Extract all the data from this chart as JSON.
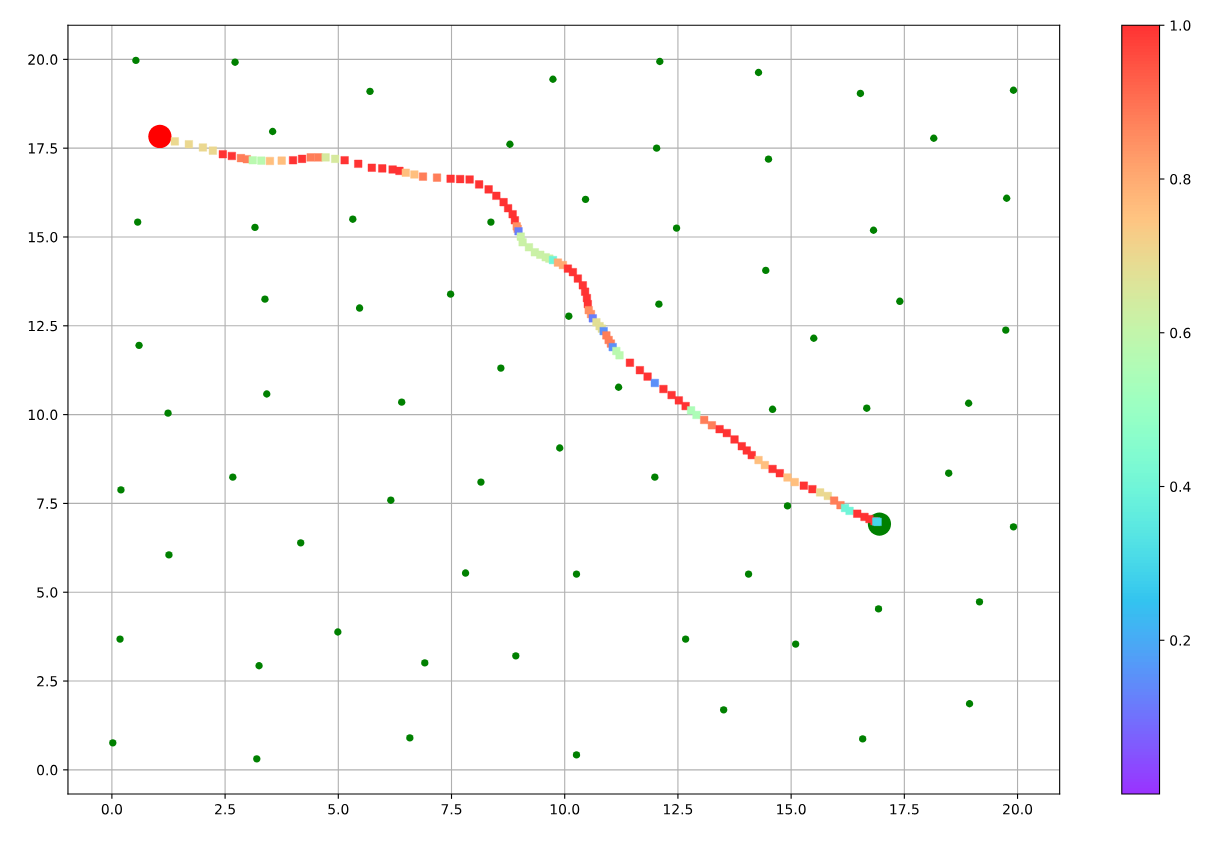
{
  "chart_data": {
    "type": "scatter",
    "xlim": [
      -0.97,
      20.93
    ],
    "ylim": [
      -0.68,
      20.96
    ],
    "xticks": [
      {
        "value": 0,
        "label": "0.0"
      },
      {
        "value": 2.5,
        "label": "2.5"
      },
      {
        "value": 5,
        "label": "5.0"
      },
      {
        "value": 7.5,
        "label": "7.5"
      },
      {
        "value": 10,
        "label": "10.0"
      },
      {
        "value": 12.5,
        "label": "12.5"
      },
      {
        "value": 15,
        "label": "15.0"
      },
      {
        "value": 17.5,
        "label": "17.5"
      },
      {
        "value": 20,
        "label": "20.0"
      }
    ],
    "yticks": [
      {
        "value": 0,
        "label": "0.0"
      },
      {
        "value": 2.5,
        "label": "2.5"
      },
      {
        "value": 5,
        "label": "5.0"
      },
      {
        "value": 7.5,
        "label": "7.5"
      },
      {
        "value": 10,
        "label": "10.0"
      },
      {
        "value": 12.5,
        "label": "12.5"
      },
      {
        "value": 15,
        "label": "15.0"
      },
      {
        "value": 17.5,
        "label": "17.5"
      },
      {
        "value": 20,
        "label": "20.0"
      }
    ],
    "grid": true,
    "clim": [
      0,
      1
    ],
    "cticks": [
      0.2,
      0.4,
      0.6,
      0.8,
      {
        "value": 1,
        "label": "1.0"
      }
    ],
    "series": [
      {
        "color": "#008000",
        "x": [
          0.53,
          2.72,
          5.7,
          9.74,
          12.1,
          14.28,
          16.53,
          19.91,
          3.55,
          8.79,
          12.03,
          14.5,
          18.15,
          0.57,
          3.16,
          5.32,
          8.37,
          10.46,
          12.47,
          16.82,
          19.76,
          3.38,
          5.47,
          7.48,
          10.09,
          12.08,
          14.44,
          17.4,
          19.74,
          0.6,
          1.24,
          3.42,
          6.4,
          8.59,
          11.19,
          14.59,
          15.5,
          16.67,
          18.92,
          0.2,
          2.67,
          6.16,
          8.15,
          9.89,
          11.99,
          14.92,
          18.48,
          19.91,
          1.26,
          4.17,
          7.81,
          10.26,
          14.06,
          16.93,
          19.16,
          0.18,
          3.25,
          4.99,
          6.91,
          8.92,
          12.67,
          15.1,
          13.51,
          18.94,
          0.02,
          3.2,
          6.58,
          10.26,
          16.58
        ],
        "values": [
          19.97,
          19.92,
          19.1,
          19.44,
          19.94,
          19.63,
          19.04,
          19.13,
          17.97,
          17.61,
          17.5,
          17.19,
          17.78,
          15.42,
          15.27,
          15.5,
          15.42,
          16.06,
          15.25,
          15.19,
          16.09,
          13.25,
          13.0,
          13.39,
          12.77,
          13.11,
          14.06,
          13.19,
          12.38,
          11.95,
          10.04,
          10.58,
          10.35,
          11.31,
          10.77,
          10.15,
          12.15,
          10.18,
          10.32,
          7.88,
          8.24,
          7.59,
          8.1,
          9.06,
          8.24,
          7.43,
          8.35,
          6.84,
          6.05,
          6.39,
          5.54,
          5.51,
          5.51,
          4.53,
          4.73,
          3.68,
          2.93,
          3.88,
          3.01,
          3.21,
          3.68,
          3.54,
          1.69,
          1.86,
          0.76,
          0.31,
          0.9,
          0.42,
          0.87
        ]
      },
      {
        "marker": "square",
        "colors": [
          "#ebd890",
          "#ebd890",
          "#ebd890",
          "#ebd890",
          "#ff3333",
          "#ff3333",
          "#ff7e59",
          "#ff7e59",
          "#baf9b0",
          "#baf9b0",
          "#ffbf7e",
          "#ffbf7e",
          "#ff3333",
          "#ff3333",
          "#ff7e59",
          "#ff7e59",
          "#d6e99e",
          "#d6e99e",
          "#ff3333",
          "#ff3333",
          "#ff3333",
          "#ff3333",
          "#ff3333",
          "#ff3333",
          "#ffbf7e",
          "#ffbf7e",
          "#ff7e59",
          "#ff7e59",
          "#ff3333",
          "#ff3333",
          "#ff3333",
          "#ff3333",
          "#ff3333",
          "#ff3333",
          "#ff3333",
          "#ff3333",
          "#ff3333",
          "#ff3333",
          "#ff9063",
          "#ff9063",
          "#687efb",
          "#caf1a6",
          "#caf1a6",
          "#caf1a6",
          "#caf1a6",
          "#caf1a6",
          "#caf1a6",
          "#caf1a6",
          "#70f5d8",
          "#ffab72",
          "#ffab72",
          "#ff3333",
          "#ff3333",
          "#ff3333",
          "#ff3333",
          "#ff3333",
          "#ff3333",
          "#ff3333",
          "#ff9063",
          "#ff9063",
          "#687efb",
          "#e2df95",
          "#e2df95",
          "#e2df95",
          "#5c90f9",
          "#ff7e59",
          "#ff7e59",
          "#ff7e59",
          "#5c90f9",
          "#baf9b0",
          "#baf9b0",
          "#ff3333",
          "#ff3333",
          "#ff3333",
          "#5c90f9",
          "#ff3333",
          "#ff3333",
          "#ff3333",
          "#ff3333",
          "#adfdb7",
          "#adfdb7",
          "#ff7e59",
          "#ff7e59",
          "#ff3333",
          "#ff3333",
          "#ff3333",
          "#ff3333",
          "#ff3333",
          "#ff3333",
          "#ffbf7e",
          "#ffbf7e",
          "#ff3333",
          "#ff3333",
          "#ffbf7e",
          "#ffbf7e",
          "#ff3333",
          "#ff3333",
          "#ebd890",
          "#ebd890",
          "#ff7e59",
          "#ff7e59",
          "#70f5d8",
          "#70f5d8",
          "#ff3333",
          "#ff3333",
          "#ff3333",
          "#ff3333",
          "#47d8e9",
          "#47d8e9"
        ],
        "x": [
          1.39,
          1.7,
          2.01,
          2.23,
          2.45,
          2.65,
          2.85,
          2.98,
          3.11,
          3.3,
          3.49,
          3.75,
          4.0,
          4.2,
          4.39,
          4.56,
          4.72,
          4.93,
          5.14,
          5.44,
          5.74,
          5.97,
          6.2,
          6.35,
          6.49,
          6.68,
          6.87,
          7.18,
          7.48,
          7.69,
          7.9,
          8.11,
          8.32,
          8.49,
          8.65,
          8.75,
          8.85,
          8.9,
          8.94,
          8.96,
          8.98,
          9.03,
          9.07,
          9.21,
          9.34,
          9.46,
          9.58,
          9.66,
          9.74,
          9.85,
          9.96,
          10.07,
          10.18,
          10.29,
          10.4,
          10.45,
          10.49,
          10.51,
          10.53,
          10.58,
          10.62,
          10.7,
          10.77,
          10.82,
          10.86,
          10.92,
          10.97,
          11.02,
          11.06,
          11.14,
          11.21,
          11.44,
          11.66,
          11.83,
          11.99,
          12.18,
          12.36,
          12.52,
          12.67,
          12.79,
          12.91,
          13.08,
          13.25,
          13.42,
          13.58,
          13.75,
          13.91,
          14.02,
          14.13,
          14.28,
          14.42,
          14.59,
          14.75,
          14.92,
          15.08,
          15.28,
          15.47,
          15.64,
          15.81,
          15.95,
          16.09,
          16.19,
          16.29,
          16.46,
          16.62,
          16.73,
          16.84,
          16.88,
          16.91
        ],
        "values": [
          17.69,
          17.61,
          17.52,
          17.43,
          17.33,
          17.28,
          17.22,
          17.19,
          17.16,
          17.15,
          17.14,
          17.15,
          17.16,
          17.2,
          17.24,
          17.24,
          17.24,
          17.2,
          17.16,
          17.06,
          16.95,
          16.93,
          16.9,
          16.86,
          16.81,
          16.76,
          16.7,
          16.67,
          16.64,
          16.63,
          16.62,
          16.48,
          16.34,
          16.16,
          15.98,
          15.81,
          15.64,
          15.47,
          15.3,
          15.23,
          15.16,
          15.01,
          14.85,
          14.71,
          14.57,
          14.5,
          14.43,
          14.39,
          14.35,
          14.28,
          14.21,
          14.11,
          14.01,
          13.83,
          13.64,
          13.46,
          13.28,
          13.11,
          12.94,
          12.83,
          12.71,
          12.6,
          12.49,
          12.42,
          12.35,
          12.23,
          12.1,
          12.0,
          11.9,
          11.79,
          11.67,
          11.46,
          11.25,
          11.07,
          10.89,
          10.72,
          10.55,
          10.4,
          10.24,
          10.12,
          9.99,
          9.85,
          9.7,
          9.59,
          9.48,
          9.3,
          9.11,
          8.99,
          8.86,
          8.72,
          8.58,
          8.47,
          8.35,
          8.23,
          8.1,
          8.0,
          7.9,
          7.81,
          7.71,
          7.58,
          7.45,
          7.37,
          7.29,
          7.21,
          7.12,
          7.06,
          7.0,
          6.99,
          6.98
        ],
        "cvalues": [
          0.7,
          0.7,
          0.7,
          0.7,
          1.0,
          1.0,
          0.88,
          0.88,
          0.58,
          0.58,
          0.76,
          0.76,
          1.0,
          1.0,
          0.88,
          0.88,
          0.65,
          0.65,
          1.0,
          1.0,
          1.0,
          1.0,
          1.0,
          1.0,
          0.76,
          0.76,
          0.88,
          0.88,
          1.0,
          1.0,
          1.0,
          1.0,
          1.0,
          1.0,
          1.0,
          1.0,
          1.0,
          1.0,
          0.85,
          0.85,
          0.12,
          0.62,
          0.62,
          0.62,
          0.62,
          0.62,
          0.62,
          0.62,
          0.4,
          0.8,
          0.8,
          1.0,
          1.0,
          1.0,
          1.0,
          1.0,
          1.0,
          1.0,
          0.85,
          0.85,
          0.12,
          0.68,
          0.68,
          0.68,
          0.15,
          0.88,
          0.88,
          0.88,
          0.15,
          0.58,
          0.58,
          1.0,
          1.0,
          1.0,
          0.15,
          1.0,
          1.0,
          1.0,
          1.0,
          0.55,
          0.55,
          0.88,
          0.88,
          1.0,
          1.0,
          1.0,
          1.0,
          1.0,
          1.0,
          0.76,
          0.76,
          1.0,
          1.0,
          0.76,
          0.76,
          1.0,
          1.0,
          0.7,
          0.7,
          0.88,
          0.88,
          0.4,
          0.4,
          1.0,
          1.0,
          1.0,
          1.0,
          0.3,
          0.3
        ]
      },
      {
        "type": "bubble",
        "color": "#ff0000",
        "x": [
          1.06
        ],
        "values": [
          17.83
        ],
        "sizes": [
          1
        ]
      },
      {
        "type": "bubble",
        "color": "#008000",
        "x": [
          16.95
        ],
        "values": [
          6.92
        ],
        "sizes": [
          1
        ]
      }
    ]
  }
}
